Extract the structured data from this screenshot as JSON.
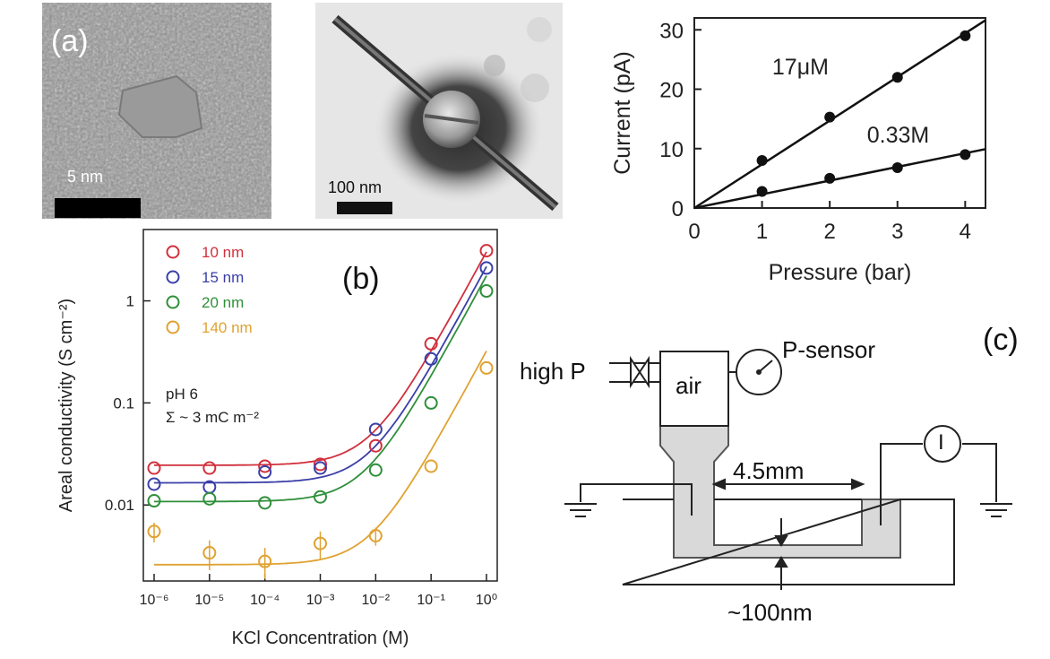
{
  "panel_a": {
    "label": "(a)",
    "left_scale_label": "5 nm",
    "right_scale_label": "100 nm"
  },
  "panel_b_label": "(b)",
  "panel_c_label": "(c)",
  "chart_data": [
    {
      "type": "scatter",
      "title": "",
      "xlabel": "Pressure (bar)",
      "ylabel": "Current (pA)",
      "xlim": [
        0,
        4.3
      ],
      "ylim": [
        0,
        32
      ],
      "x_ticks": [
        0,
        1,
        2,
        3,
        4
      ],
      "y_ticks": [
        0,
        10,
        20,
        30
      ],
      "fit_lines": true,
      "series": [
        {
          "name": "17μM",
          "x": [
            1,
            2,
            3,
            4
          ],
          "y": [
            8,
            15.3,
            22,
            29
          ]
        },
        {
          "name": "0.33M",
          "x": [
            1,
            2,
            3,
            4
          ],
          "y": [
            2.8,
            5,
            6.8,
            9
          ]
        }
      ],
      "colors": {
        "points": "#111111",
        "lines": "#111111"
      }
    },
    {
      "type": "scatter",
      "title": "",
      "xlabel": "KCl Concentration (M)",
      "ylabel": "Areal conductivity (S cm⁻²)",
      "log_x": true,
      "log_y": true,
      "xlim": [
        1e-06,
        1
      ],
      "ylim": [
        0.0018,
        5
      ],
      "x_tick_labels": [
        "10⁻⁶",
        "10⁻⁵",
        "10⁻⁴",
        "10⁻³",
        "10⁻²",
        "10⁻¹",
        "10⁰"
      ],
      "y_tick_labels": [
        "0.01",
        "0.1",
        "1"
      ],
      "annotations": [
        "pH 6",
        "Σ ~ 3 mC m⁻²"
      ],
      "legend_placement": "top-left",
      "series": [
        {
          "name": "10 nm",
          "color": "#d1303c",
          "x": [
            1e-06,
            1e-05,
            0.0001,
            0.001,
            0.01,
            0.1,
            1
          ],
          "y": [
            0.023,
            0.023,
            0.024,
            0.025,
            0.038,
            0.38,
            3.1
          ],
          "fit": {
            "base": 0.0245,
            "slope": 3.0
          }
        },
        {
          "name": "15 nm",
          "color": "#3a3fa8",
          "x": [
            1e-06,
            1e-05,
            0.0001,
            0.001,
            0.01,
            0.1,
            1
          ],
          "y": [
            0.016,
            0.015,
            0.021,
            0.023,
            0.055,
            0.27,
            2.1
          ],
          "fit": {
            "base": 0.0165,
            "slope": 2.15
          }
        },
        {
          "name": "20 nm",
          "color": "#2f8f3a",
          "x": [
            1e-06,
            1e-05,
            0.0001,
            0.001,
            0.01,
            0.1,
            1
          ],
          "y": [
            0.011,
            0.0115,
            0.0105,
            0.012,
            0.022,
            0.1,
            1.25
          ],
          "fit": {
            "base": 0.0108,
            "slope": 1.75
          }
        },
        {
          "name": "140 nm",
          "color": "#e0a232",
          "x": [
            1e-06,
            1e-05,
            0.0001,
            0.001,
            0.01,
            0.1,
            1
          ],
          "y": [
            0.0055,
            0.0034,
            0.0028,
            0.0042,
            0.005,
            0.024,
            0.22
          ],
          "y_err": [
            0.0012,
            0.0011,
            0.001,
            0.0013,
            0.001,
            0,
            0
          ],
          "fit": {
            "base": 0.0026,
            "slope": 0.32
          }
        }
      ]
    }
  ],
  "panel_c": {
    "high_p_label": "high P",
    "air_label": "air",
    "sensor_label": "P-sensor",
    "current_symbol": "I",
    "gap_label": "4.5mm",
    "depth_label": "~100nm"
  }
}
